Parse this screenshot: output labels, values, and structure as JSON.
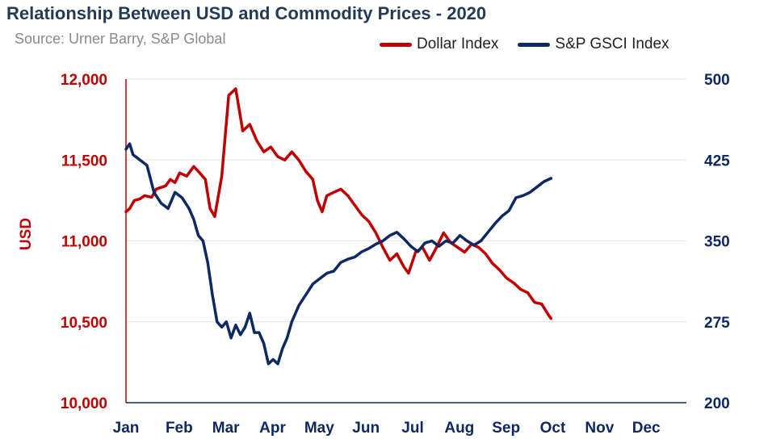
{
  "colors": {
    "usd": "#c00000",
    "gsci": "#0e2862",
    "title": "#243b55",
    "subtitle": "#8a8a8a",
    "grid": "#e6e6e6"
  },
  "chart_data": {
    "type": "line",
    "title": "Relationship Between USD and Commodity Prices - 2020",
    "subtitle": "Source: Urner Barry, S&P Global",
    "ylabel_left": "USD",
    "ylabel_right": "",
    "xlabel": "",
    "legend_position": "top-right",
    "grid": true,
    "x_categories": [
      "Jan",
      "Feb",
      "Mar",
      "Apr",
      "May",
      "Jun",
      "Jul",
      "Aug",
      "Sep",
      "Oct",
      "Nov",
      "Dec"
    ],
    "ylim_left": [
      10000,
      12000
    ],
    "yticks_left": [
      "10,000",
      "10,500",
      "11,000",
      "11,500",
      "12,000"
    ],
    "ylim_right": [
      200,
      500
    ],
    "yticks_right": [
      "200",
      "275",
      "350",
      "425",
      "500"
    ],
    "series": [
      {
        "name": "Dollar Index",
        "axis": "left",
        "points": [
          [
            0.0,
            11180
          ],
          [
            0.08,
            11200
          ],
          [
            0.18,
            11250
          ],
          [
            0.3,
            11260
          ],
          [
            0.4,
            11280
          ],
          [
            0.55,
            11270
          ],
          [
            0.65,
            11320
          ],
          [
            0.75,
            11330
          ],
          [
            0.85,
            11340
          ],
          [
            0.95,
            11380
          ],
          [
            1.05,
            11360
          ],
          [
            1.15,
            11420
          ],
          [
            1.3,
            11400
          ],
          [
            1.45,
            11460
          ],
          [
            1.55,
            11430
          ],
          [
            1.7,
            11380
          ],
          [
            1.8,
            11200
          ],
          [
            1.9,
            11150
          ],
          [
            2.05,
            11400
          ],
          [
            2.2,
            11900
          ],
          [
            2.35,
            11940
          ],
          [
            2.5,
            11680
          ],
          [
            2.65,
            11720
          ],
          [
            2.8,
            11620
          ],
          [
            2.95,
            11550
          ],
          [
            3.1,
            11580
          ],
          [
            3.25,
            11520
          ],
          [
            3.4,
            11500
          ],
          [
            3.55,
            11550
          ],
          [
            3.7,
            11500
          ],
          [
            3.85,
            11430
          ],
          [
            4.0,
            11380
          ],
          [
            4.1,
            11250
          ],
          [
            4.2,
            11180
          ],
          [
            4.3,
            11280
          ],
          [
            4.45,
            11300
          ],
          [
            4.6,
            11320
          ],
          [
            4.75,
            11280
          ],
          [
            4.9,
            11220
          ],
          [
            5.05,
            11160
          ],
          [
            5.2,
            11120
          ],
          [
            5.35,
            11050
          ],
          [
            5.5,
            10960
          ],
          [
            5.65,
            10880
          ],
          [
            5.8,
            10920
          ],
          [
            5.95,
            10840
          ],
          [
            6.05,
            10800
          ],
          [
            6.2,
            10930
          ],
          [
            6.35,
            10960
          ],
          [
            6.5,
            10880
          ],
          [
            6.65,
            10960
          ],
          [
            6.8,
            11050
          ],
          [
            6.95,
            10990
          ],
          [
            7.1,
            10960
          ],
          [
            7.25,
            10930
          ],
          [
            7.4,
            10980
          ],
          [
            7.55,
            10960
          ],
          [
            7.7,
            10920
          ],
          [
            7.85,
            10860
          ],
          [
            8.0,
            10820
          ],
          [
            8.15,
            10770
          ],
          [
            8.3,
            10740
          ],
          [
            8.45,
            10700
          ],
          [
            8.6,
            10680
          ],
          [
            8.75,
            10620
          ],
          [
            8.9,
            10610
          ],
          [
            9.05,
            10540
          ],
          [
            9.1,
            10520
          ]
        ]
      },
      {
        "name": "S&P GSCI Index",
        "axis": "right",
        "points": [
          [
            0.0,
            435
          ],
          [
            0.08,
            440
          ],
          [
            0.15,
            430
          ],
          [
            0.3,
            425
          ],
          [
            0.45,
            420
          ],
          [
            0.6,
            395
          ],
          [
            0.75,
            385
          ],
          [
            0.9,
            380
          ],
          [
            1.05,
            395
          ],
          [
            1.2,
            390
          ],
          [
            1.35,
            380
          ],
          [
            1.45,
            370
          ],
          [
            1.55,
            355
          ],
          [
            1.65,
            350
          ],
          [
            1.75,
            330
          ],
          [
            1.85,
            300
          ],
          [
            1.95,
            275
          ],
          [
            2.05,
            270
          ],
          [
            2.15,
            275
          ],
          [
            2.25,
            260
          ],
          [
            2.35,
            272
          ],
          [
            2.45,
            263
          ],
          [
            2.55,
            270
          ],
          [
            2.65,
            283
          ],
          [
            2.75,
            265
          ],
          [
            2.85,
            265
          ],
          [
            2.95,
            255
          ],
          [
            3.05,
            236
          ],
          [
            3.15,
            240
          ],
          [
            3.25,
            236
          ],
          [
            3.35,
            250
          ],
          [
            3.45,
            260
          ],
          [
            3.55,
            275
          ],
          [
            3.7,
            290
          ],
          [
            3.85,
            300
          ],
          [
            4.0,
            310
          ],
          [
            4.15,
            315
          ],
          [
            4.3,
            320
          ],
          [
            4.45,
            322
          ],
          [
            4.6,
            330
          ],
          [
            4.75,
            333
          ],
          [
            4.9,
            335
          ],
          [
            5.05,
            340
          ],
          [
            5.2,
            343
          ],
          [
            5.35,
            347
          ],
          [
            5.5,
            350
          ],
          [
            5.65,
            355
          ],
          [
            5.8,
            358
          ],
          [
            5.95,
            352
          ],
          [
            6.1,
            345
          ],
          [
            6.25,
            340
          ],
          [
            6.4,
            348
          ],
          [
            6.55,
            350
          ],
          [
            6.7,
            345
          ],
          [
            6.85,
            350
          ],
          [
            7.0,
            348
          ],
          [
            7.15,
            355
          ],
          [
            7.3,
            350
          ],
          [
            7.45,
            346
          ],
          [
            7.6,
            350
          ],
          [
            7.75,
            358
          ],
          [
            7.9,
            366
          ],
          [
            8.05,
            373
          ],
          [
            8.2,
            378
          ],
          [
            8.35,
            390
          ],
          [
            8.5,
            392
          ],
          [
            8.65,
            395
          ],
          [
            8.8,
            400
          ],
          [
            8.95,
            405
          ],
          [
            9.1,
            408
          ]
        ]
      }
    ]
  }
}
